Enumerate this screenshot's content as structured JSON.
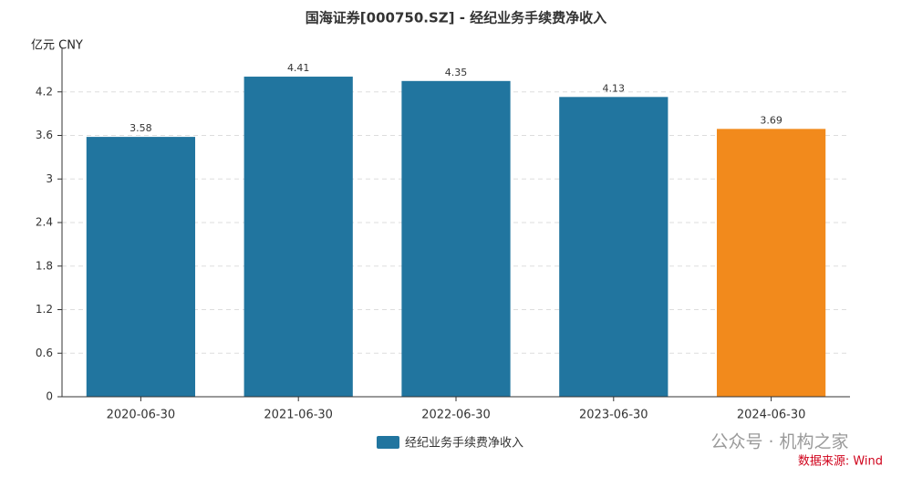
{
  "chart_data": {
    "type": "bar",
    "title": "国海证券[000750.SZ] - 经纪业务手续费净收入",
    "y_unit": "亿元  CNY",
    "categories": [
      "2020-06-30",
      "2021-06-30",
      "2022-06-30",
      "2023-06-30",
      "2024-06-30"
    ],
    "series": [
      {
        "name": "经纪业务手续费净收入",
        "color": "#21759f",
        "values": [
          3.58,
          4.41,
          4.35,
          4.13,
          3.69
        ],
        "colors": [
          "#21759f",
          "#21759f",
          "#21759f",
          "#21759f",
          "#f28a1c"
        ]
      }
    ],
    "ylim": [
      0,
      4.8
    ],
    "yticks": [
      0,
      0.6,
      1.2,
      1.8,
      2.4,
      3,
      3.6,
      4.2
    ],
    "grid": true,
    "watermark": "公众号 · 机构之家",
    "source": "数据来源: Wind"
  }
}
